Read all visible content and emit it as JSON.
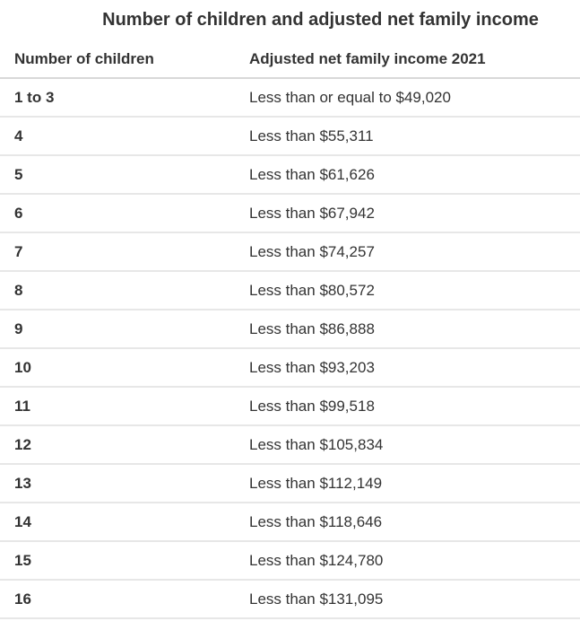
{
  "title": "Number of children and adjusted net family income",
  "chart_data": {
    "type": "table",
    "title": "Number of children and adjusted net family income",
    "columns": [
      "Number of children",
      "Adjusted net family income 2021"
    ],
    "rows": [
      [
        "1 to 3",
        "Less than or equal to $49,020"
      ],
      [
        "4",
        "Less than $55,311"
      ],
      [
        "5",
        "Less than $61,626"
      ],
      [
        "6",
        "Less than $67,942"
      ],
      [
        "7",
        "Less than $74,257"
      ],
      [
        "8",
        "Less than $80,572"
      ],
      [
        "9",
        "Less than $86,888"
      ],
      [
        "10",
        "Less than $93,203"
      ],
      [
        "11",
        "Less than $99,518"
      ],
      [
        "12",
        "Less than $105,834"
      ],
      [
        "13",
        "Less than $112,149"
      ],
      [
        "14",
        "Less than $118,646"
      ],
      [
        "15",
        "Less than $124,780"
      ],
      [
        "16",
        "Less than $131,095"
      ]
    ],
    "income_thresholds_numeric": [
      49020,
      55311,
      61626,
      67942,
      74257,
      80572,
      86888,
      93203,
      99518,
      105834,
      112149,
      118646,
      124780,
      131095
    ],
    "layout": "two-column table, bold first column, caption centered above"
  },
  "colors": {
    "text": "#333333",
    "header_border": "#d8d8d8",
    "row_border": "#e7e7e7",
    "background": "#ffffff"
  }
}
